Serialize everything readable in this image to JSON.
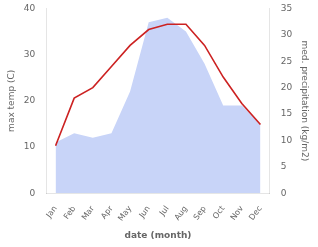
{
  "chart_data": {
    "type": "line",
    "xlabel": "date (month)",
    "ylabel": "max temp (C)",
    "y2label": "med. precipitation (kg/m2)",
    "categories": [
      "Jan",
      "Feb",
      "Mar",
      "Apr",
      "May",
      "Jun",
      "Jul",
      "Aug",
      "Sep",
      "Oct",
      "Nov",
      "Dec"
    ],
    "series": [
      {
        "type": "area",
        "color": "#c8d4f8",
        "values": [
          11,
          13,
          12,
          13,
          22,
          37,
          38,
          35,
          28,
          19,
          19,
          15
        ]
      },
      {
        "type": "line",
        "color": "#cc2222",
        "axis": "y2",
        "values": [
          9,
          18,
          20,
          24,
          28,
          31,
          32,
          32,
          28,
          22,
          17,
          13
        ]
      }
    ],
    "ylim": [
      0,
      40
    ],
    "yticks": [
      0,
      10,
      20,
      30,
      40
    ],
    "y2lim": [
      0,
      35
    ],
    "y2ticks": [
      0,
      5,
      10,
      15,
      20,
      25,
      30,
      35
    ],
    "grid": false
  }
}
